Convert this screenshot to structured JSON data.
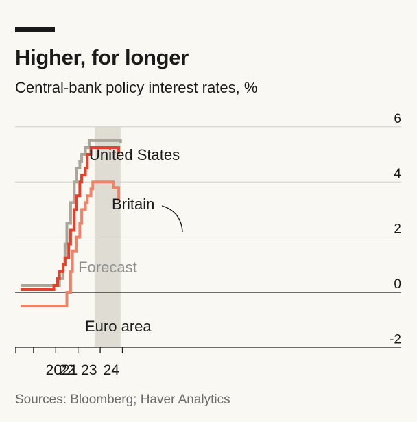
{
  "header": {
    "title": "Higher, for longer",
    "subtitle": "Central-bank policy interest rates, %"
  },
  "footer": {
    "source": "Sources: Bloomberg; Haver Analytics"
  },
  "chart_data": {
    "type": "line",
    "title": "Higher, for longer",
    "subtitle": "Central-bank policy interest rates, %",
    "xlabel": "",
    "ylabel": "",
    "x_ticks": [
      "2021",
      "22",
      "23",
      "24"
    ],
    "xlim": [
      "2020-06",
      "2024-12"
    ],
    "ylim": [
      -2,
      6
    ],
    "y_ticks": [
      6,
      4,
      2,
      0,
      -2
    ],
    "y_axis_side": "right",
    "grid": true,
    "forecast": {
      "label": "Forecast",
      "start": "2023-10",
      "end": "2024-12"
    },
    "step": true,
    "series": [
      {
        "name": "United States",
        "color": "#aaa69a",
        "points": [
          [
            "2020-06",
            0.25
          ],
          [
            "2022-03",
            0.5
          ],
          [
            "2022-05",
            1.0
          ],
          [
            "2022-06",
            1.75
          ],
          [
            "2022-07",
            2.5
          ],
          [
            "2022-09",
            3.25
          ],
          [
            "2022-11",
            4.0
          ],
          [
            "2022-12",
            4.5
          ],
          [
            "2023-02",
            4.75
          ],
          [
            "2023-03",
            5.0
          ],
          [
            "2023-05",
            5.25
          ],
          [
            "2023-07",
            5.5
          ],
          [
            "2024-12",
            5.4
          ]
        ]
      },
      {
        "name": "Britain",
        "color": "#e3412b",
        "points": [
          [
            "2020-06",
            0.1
          ],
          [
            "2021-12",
            0.25
          ],
          [
            "2022-02",
            0.5
          ],
          [
            "2022-03",
            0.75
          ],
          [
            "2022-05",
            1.0
          ],
          [
            "2022-06",
            1.25
          ],
          [
            "2022-08",
            1.75
          ],
          [
            "2022-09",
            2.25
          ],
          [
            "2022-11",
            3.0
          ],
          [
            "2022-12",
            3.5
          ],
          [
            "2023-02",
            4.0
          ],
          [
            "2023-03",
            4.25
          ],
          [
            "2023-05",
            4.5
          ],
          [
            "2023-06",
            5.0
          ],
          [
            "2023-08",
            5.25
          ],
          [
            "2024-06",
            5.25
          ],
          [
            "2024-11",
            5.0
          ]
        ]
      },
      {
        "name": "Euro area",
        "color": "#f0826a",
        "points": [
          [
            "2020-06",
            -0.5
          ],
          [
            "2022-07",
            0.0
          ],
          [
            "2022-09",
            0.75
          ],
          [
            "2022-10",
            1.5
          ],
          [
            "2022-12",
            2.0
          ],
          [
            "2023-02",
            2.5
          ],
          [
            "2023-03",
            3.0
          ],
          [
            "2023-05",
            3.25
          ],
          [
            "2023-06",
            3.5
          ],
          [
            "2023-08",
            3.75
          ],
          [
            "2023-09",
            4.0
          ],
          [
            "2024-04",
            4.0
          ],
          [
            "2024-08",
            3.8
          ],
          [
            "2024-11",
            3.3
          ]
        ]
      }
    ]
  }
}
